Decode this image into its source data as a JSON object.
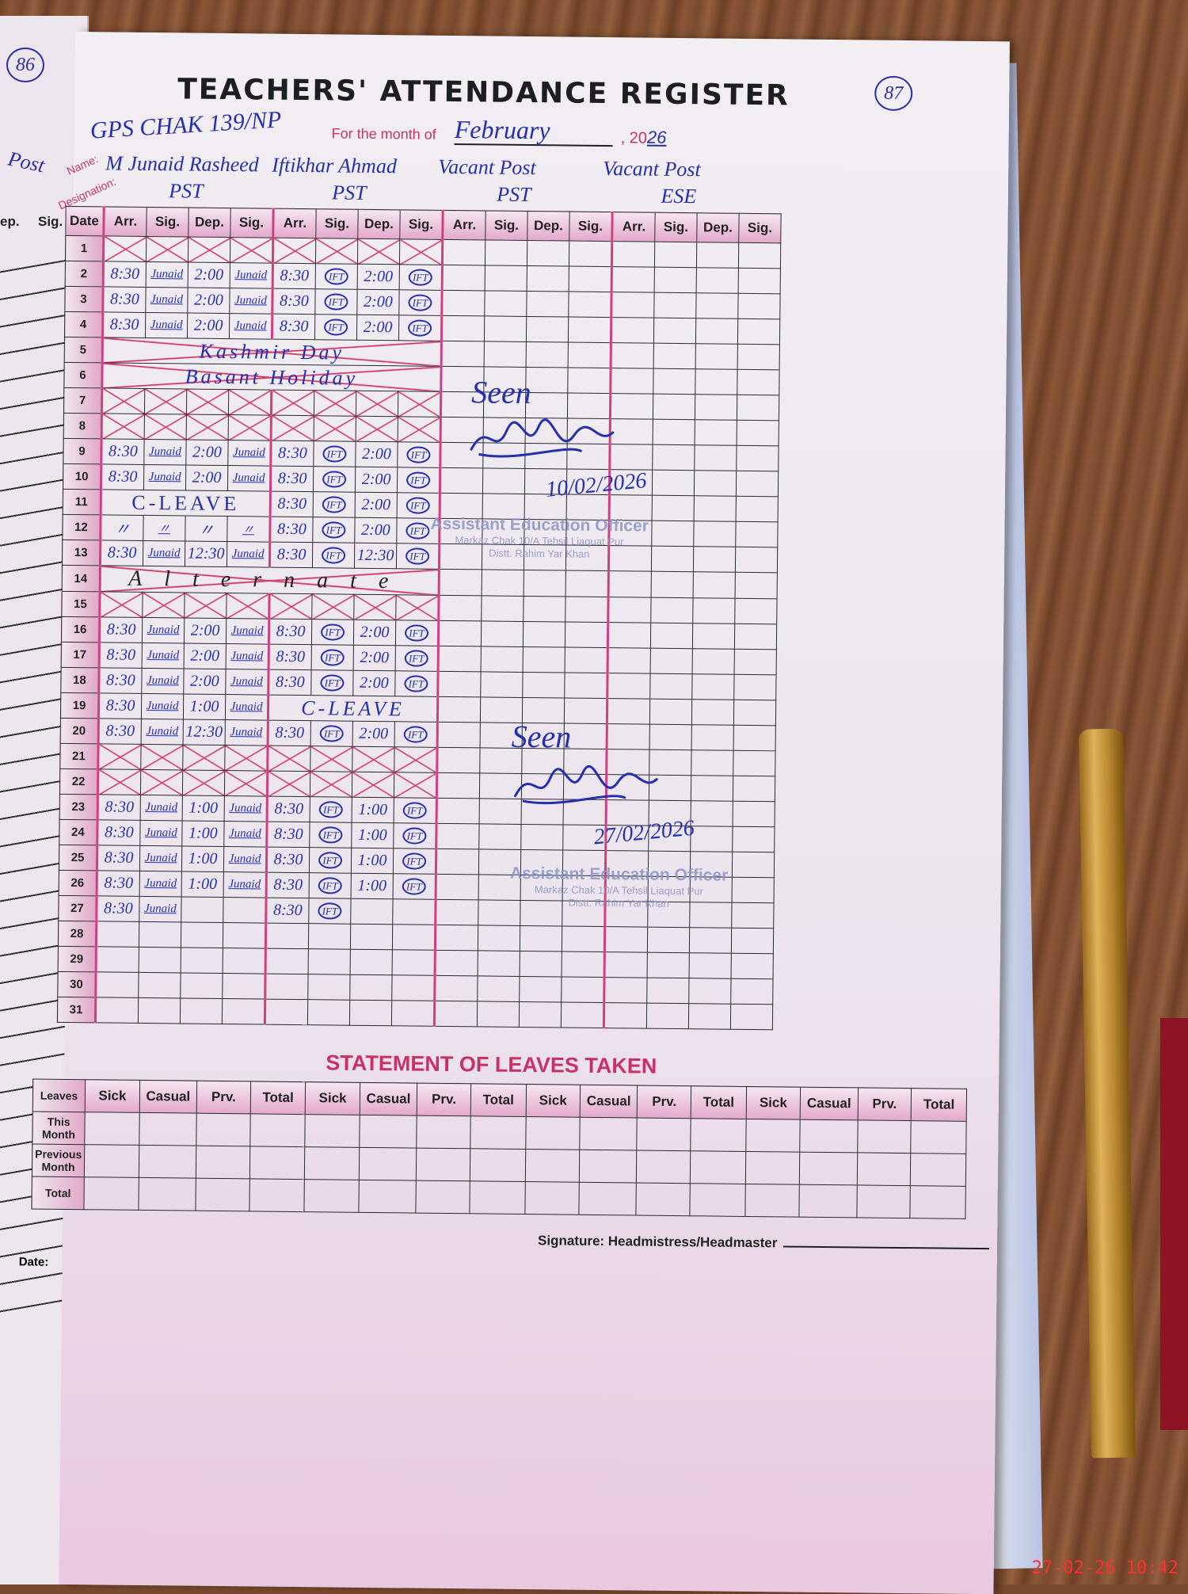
{
  "left_page": {
    "heading": "Post",
    "col1": "ep.",
    "col2": "Sig."
  },
  "page_numbers": {
    "left": "86",
    "right": "87"
  },
  "title": "TEACHERS' ATTENDANCE REGISTER",
  "school": "GPS CHAK 139/NP",
  "month_label": "For the month of",
  "month": "February",
  "year_prefix": ", 20",
  "year_suffix": "26",
  "name_label": "Name:",
  "designation_label": "Designation:",
  "teachers": [
    {
      "name": "M Junaid Rasheed",
      "designation": "PST"
    },
    {
      "name": "Iftikhar Ahmad",
      "designation": "PST"
    },
    {
      "name": "Vacant Post",
      "designation": "PST"
    },
    {
      "name": "Vacant Post",
      "designation": "ESE"
    }
  ],
  "columns": {
    "date": "Date",
    "sub": [
      "Arr.",
      "Sig.",
      "Dep.",
      "Sig."
    ]
  },
  "rows": [
    {
      "date": "1",
      "crossed": true,
      "t1": [
        "",
        "",
        "",
        ""
      ],
      "t2": [
        "",
        "",
        "",
        ""
      ]
    },
    {
      "date": "2",
      "t1": [
        "8:30",
        "Junaid",
        "2:00",
        "Junaid"
      ],
      "t2": [
        "8:30",
        "IFT",
        "2:00",
        "IFT"
      ]
    },
    {
      "date": "3",
      "t1": [
        "8:30",
        "Junaid",
        "2:00",
        "Junaid"
      ],
      "t2": [
        "8:30",
        "IFT",
        "2:00",
        "IFT"
      ]
    },
    {
      "date": "4",
      "t1": [
        "8:30",
        "Junaid",
        "2:00",
        "Junaid"
      ],
      "t2": [
        "8:30",
        "IFT",
        "2:00",
        "IFT"
      ]
    },
    {
      "date": "5",
      "crossed": true,
      "t1": [
        "",
        "",
        "",
        ""
      ],
      "t2": [
        "",
        "",
        "",
        ""
      ]
    },
    {
      "date": "6",
      "crossed": true,
      "t1": [
        "",
        "",
        "",
        ""
      ],
      "t2": [
        "",
        "",
        "",
        ""
      ]
    },
    {
      "date": "7",
      "crossed": true,
      "t1": [
        "",
        "",
        "",
        ""
      ],
      "t2": [
        "",
        "",
        "",
        ""
      ]
    },
    {
      "date": "8",
      "crossed": true,
      "t1": [
        "",
        "",
        "",
        ""
      ],
      "t2": [
        "",
        "",
        "",
        ""
      ]
    },
    {
      "date": "9",
      "t1": [
        "8:30",
        "Junaid",
        "2:00",
        "Junaid"
      ],
      "t2": [
        "8:30",
        "IFT",
        "2:00",
        "IFT"
      ]
    },
    {
      "date": "10",
      "t1": [
        "8:30",
        "Junaid",
        "2:00",
        "Junaid"
      ],
      "t2": [
        "8:30",
        "IFT",
        "2:00",
        "IFT"
      ]
    },
    {
      "date": "11",
      "t1": [
        "",
        "",
        "",
        ""
      ],
      "t2": [
        "8:30",
        "IFT",
        "2:00",
        "IFT"
      ]
    },
    {
      "date": "12",
      "t1": [
        "〃",
        "〃",
        "〃",
        "〃"
      ],
      "t2": [
        "8:30",
        "IFT",
        "2:00",
        "IFT"
      ]
    },
    {
      "date": "13",
      "t1": [
        "8:30",
        "Junaid",
        "12:30",
        "Junaid"
      ],
      "t2": [
        "8:30",
        "IFT",
        "12:30",
        "IFT"
      ]
    },
    {
      "date": "14",
      "crossed": true,
      "t1": [
        "",
        "",
        "",
        ""
      ],
      "t2": [
        "",
        "",
        "",
        ""
      ]
    },
    {
      "date": "15",
      "crossed": true,
      "t1": [
        "",
        "",
        "",
        ""
      ],
      "t2": [
        "",
        "",
        "",
        ""
      ]
    },
    {
      "date": "16",
      "t1": [
        "8:30",
        "Junaid",
        "2:00",
        "Junaid"
      ],
      "t2": [
        "8:30",
        "IFT",
        "2:00",
        "IFT"
      ]
    },
    {
      "date": "17",
      "t1": [
        "8:30",
        "Junaid",
        "2:00",
        "Junaid"
      ],
      "t2": [
        "8:30",
        "IFT",
        "2:00",
        "IFT"
      ]
    },
    {
      "date": "18",
      "t1": [
        "8:30",
        "Junaid",
        "2:00",
        "Junaid"
      ],
      "t2": [
        "8:30",
        "IFT",
        "2:00",
        "IFT"
      ]
    },
    {
      "date": "19",
      "t1": [
        "8:30",
        "Junaid",
        "1:00",
        "Junaid"
      ],
      "t2": [
        "",
        "",
        "",
        ""
      ]
    },
    {
      "date": "20",
      "t1": [
        "8:30",
        "Junaid",
        "12:30",
        "Junaid"
      ],
      "t2": [
        "8:30",
        "IFT",
        "2:00",
        "IFT"
      ]
    },
    {
      "date": "21",
      "crossed": true,
      "t1": [
        "",
        "",
        "",
        ""
      ],
      "t2": [
        "",
        "",
        "",
        ""
      ]
    },
    {
      "date": "22",
      "crossed": true,
      "t1": [
        "",
        "",
        "",
        ""
      ],
      "t2": [
        "",
        "",
        "",
        ""
      ]
    },
    {
      "date": "23",
      "t1": [
        "8:30",
        "Junaid",
        "1:00",
        "Junaid"
      ],
      "t2": [
        "8:30",
        "IFT",
        "1:00",
        "IFT"
      ]
    },
    {
      "date": "24",
      "t1": [
        "8:30",
        "Junaid",
        "1:00",
        "Junaid"
      ],
      "t2": [
        "8:30",
        "IFT",
        "1:00",
        "IFT"
      ]
    },
    {
      "date": "25",
      "t1": [
        "8:30",
        "Junaid",
        "1:00",
        "Junaid"
      ],
      "t2": [
        "8:30",
        "IFT",
        "1:00",
        "IFT"
      ]
    },
    {
      "date": "26",
      "t1": [
        "8:30",
        "Junaid",
        "1:00",
        "Junaid"
      ],
      "t2": [
        "8:30",
        "IFT",
        "1:00",
        "IFT"
      ]
    },
    {
      "date": "27",
      "t1": [
        "8:30",
        "Junaid",
        "",
        ""
      ],
      "t2": [
        "8:30",
        "IFT",
        "",
        ""
      ]
    },
    {
      "date": "28",
      "t1": [
        "",
        "",
        "",
        ""
      ],
      "t2": [
        "",
        "",
        "",
        ""
      ]
    },
    {
      "date": "29",
      "t1": [
        "",
        "",
        "",
        ""
      ],
      "t2": [
        "",
        "",
        "",
        ""
      ]
    },
    {
      "date": "30",
      "t1": [
        "",
        "",
        "",
        ""
      ],
      "t2": [
        "",
        "",
        "",
        ""
      ]
    },
    {
      "date": "31",
      "t1": [
        "",
        "",
        "",
        ""
      ],
      "t2": [
        "",
        "",
        "",
        ""
      ]
    }
  ],
  "notes": {
    "kashmir": "Kashmir Day",
    "basant": "Basant Holiday",
    "cleave1": "C-LEAVE",
    "alternate": "Alternate",
    "cleave2": "C-LEAVE"
  },
  "reviews": [
    {
      "text": "Seen",
      "date": "10/02/2026"
    },
    {
      "text": "Seen",
      "date": "27/02/2026"
    }
  ],
  "stamp": {
    "line1": "Assistant Education Officer",
    "line2": "Markaz Chak 10/A Tehsil Liaquat Pur",
    "line3": "Distt. Rahim Yar Khan"
  },
  "statement": {
    "title": "STATEMENT OF LEAVES TAKEN",
    "row_header": "Leaves",
    "cols": [
      "Sick",
      "Casual",
      "Prv.",
      "Total"
    ],
    "rows": [
      "This Month",
      "Previous Month",
      "Total"
    ]
  },
  "footer": {
    "signature": "Signature: Headmistress/Headmaster",
    "date": "Date:"
  },
  "timestamp": "27-02-26  10:42",
  "colors": {
    "ink": "#2430b0",
    "form_red": "#c8306a",
    "wood": "#7a4a2e"
  }
}
